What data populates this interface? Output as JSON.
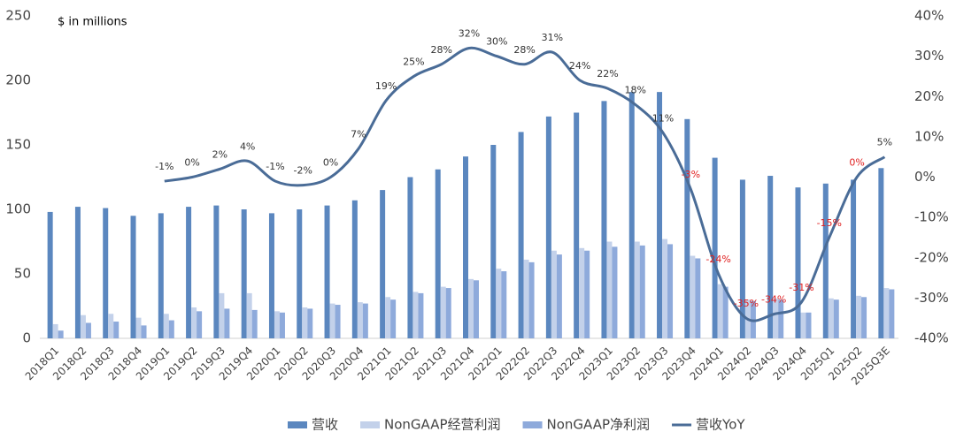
{
  "chart_data": {
    "type": "bar",
    "annotation": "$ in millions",
    "categories": [
      "2018Q1",
      "2018Q2",
      "2018Q3",
      "2018Q4",
      "2019Q1",
      "2019Q2",
      "2019Q3",
      "2019Q4",
      "2020Q1",
      "2020Q2",
      "2020Q3",
      "2020Q4",
      "2021Q1",
      "2021Q2",
      "2021Q3",
      "2021Q4",
      "2022Q1",
      "2022Q2",
      "2022Q3",
      "2022Q4",
      "2023Q1",
      "2023Q2",
      "2023Q3",
      "2023Q4",
      "2024Q1",
      "2024Q2",
      "2024Q3",
      "2024Q4",
      "2025Q1",
      "2025Q2",
      "2025Q3E"
    ],
    "series": [
      {
        "name": "营收",
        "type": "bar",
        "color": "#5b87bf",
        "values": [
          98,
          102,
          101,
          95,
          97,
          102,
          103,
          100,
          97,
          100,
          103,
          107,
          115,
          125,
          131,
          141,
          150,
          160,
          172,
          175,
          184,
          191,
          191,
          170,
          140,
          123,
          126,
          117,
          120,
          123,
          132
        ]
      },
      {
        "name": "NonGAAP经营利润",
        "type": "bar",
        "color": "#c3d1ea",
        "values": [
          11,
          18,
          19,
          16,
          19,
          24,
          35,
          35,
          21,
          24,
          27,
          28,
          32,
          36,
          40,
          46,
          54,
          61,
          68,
          70,
          75,
          75,
          77,
          64,
          42,
          30,
          31,
          20,
          31,
          33,
          39
        ]
      },
      {
        "name": "NonGAAP净利润",
        "type": "bar",
        "color": "#8eaadb",
        "values": [
          6,
          12,
          13,
          10,
          14,
          21,
          23,
          22,
          20,
          23,
          26,
          27,
          30,
          35,
          39,
          45,
          52,
          59,
          65,
          68,
          71,
          72,
          73,
          62,
          40,
          29,
          30,
          20,
          30,
          32,
          38
        ]
      },
      {
        "name": "营收YoY",
        "type": "line",
        "axis": "y2",
        "color": "#4a6c97",
        "values": [
          null,
          null,
          null,
          null,
          -1,
          0,
          2,
          4,
          -1,
          -2,
          0,
          7,
          19,
          25,
          28,
          32,
          30,
          28,
          31,
          24,
          22,
          18,
          11,
          -3,
          -24,
          -35,
          -34,
          -31,
          -15,
          0,
          5
        ],
        "value_labels": [
          null,
          null,
          null,
          null,
          "-1%",
          "0%",
          "2%",
          "4%",
          "-1%",
          "-2%",
          "0%",
          "7%",
          "19%",
          "25%",
          "28%",
          "32%",
          "30%",
          "28%",
          "31%",
          "24%",
          "22%",
          "18%",
          "11%",
          "-3%",
          "-24%",
          "-35%",
          "-34%",
          "-31%",
          "-15%",
          "0%",
          "5%"
        ],
        "value_label_colors": [
          null,
          null,
          null,
          null,
          "#333",
          "#333",
          "#333",
          "#333",
          "#333",
          "#333",
          "#333",
          "#333",
          "#333",
          "#333",
          "#333",
          "#333",
          "#333",
          "#333",
          "#333",
          "#333",
          "#333",
          "#333",
          "#333",
          "#e02020",
          "#e02020",
          "#e02020",
          "#e02020",
          "#e02020",
          "#e02020",
          "#e02020",
          "#333"
        ]
      }
    ],
    "ylim": [
      0,
      250
    ],
    "yticks": [
      0,
      50,
      100,
      150,
      200,
      250
    ],
    "y2lim": [
      -40,
      40
    ],
    "y2ticks": [
      {
        "value": -40,
        "label": "-40%"
      },
      {
        "value": -30,
        "label": "-30%"
      },
      {
        "value": -20,
        "label": "-20%"
      },
      {
        "value": -10,
        "label": "-10%"
      },
      {
        "value": 0,
        "label": "0%"
      },
      {
        "value": 10,
        "label": "10%"
      },
      {
        "value": 20,
        "label": "20%"
      },
      {
        "value": 30,
        "label": "30%"
      },
      {
        "value": 40,
        "label": "40%"
      }
    ],
    "legend": "bottom"
  }
}
